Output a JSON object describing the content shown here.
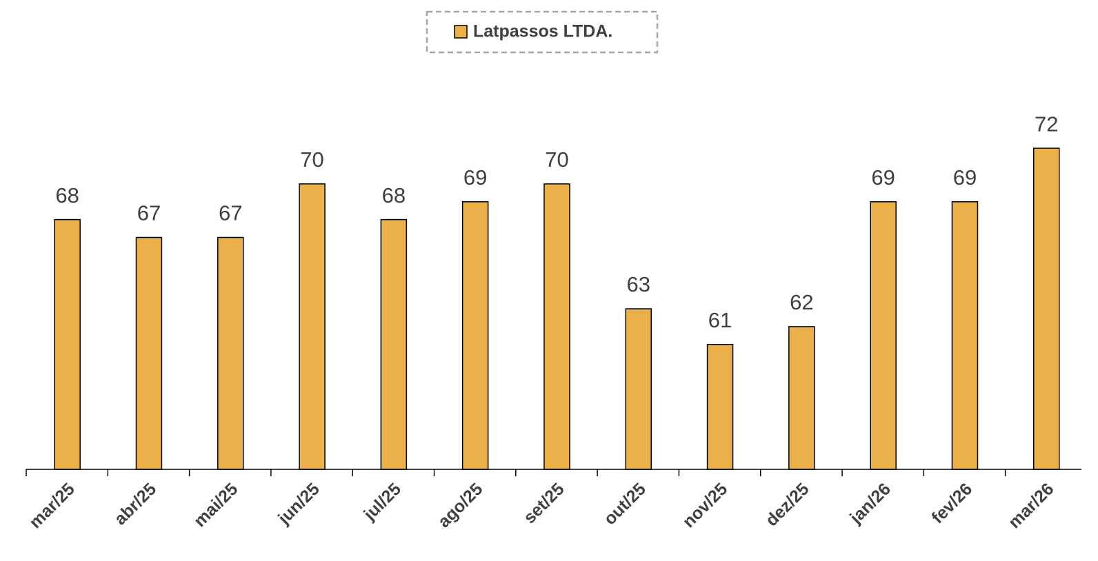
{
  "chart_data": {
    "type": "bar",
    "categories": [
      "mar/25",
      "abr/25",
      "mai/25",
      "jun/25",
      "jul/25",
      "ago/25",
      "set/25",
      "out/25",
      "nov/25",
      "dez/25",
      "jan/26",
      "fev/26",
      "mar/26"
    ],
    "series": [
      {
        "name": "Latpassos LTDA.",
        "color": "#ebb04a",
        "values": [
          68,
          67,
          67,
          70,
          68,
          69,
          70,
          63,
          61,
          62,
          69,
          69,
          72
        ]
      }
    ],
    "ylim": [
      54,
      80
    ],
    "legend": "top"
  }
}
